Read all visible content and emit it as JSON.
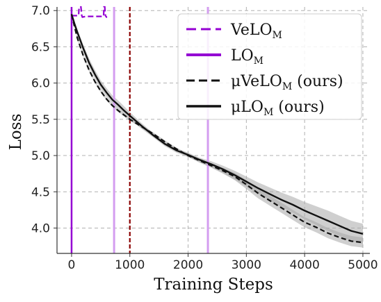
{
  "chart_data": {
    "type": "line",
    "xlabel": "Training Steps",
    "ylabel": "Loss",
    "xlim": [
      -250,
      5120
    ],
    "ylim": [
      3.65,
      7.05
    ],
    "xticks": [
      0,
      1000,
      2000,
      3000,
      4000,
      5000
    ],
    "xtick_labels": [
      "0",
      "1000",
      "2000",
      "3000",
      "4000",
      "5000"
    ],
    "yticks": [
      4.0,
      4.5,
      5.0,
      5.5,
      6.0,
      6.5,
      7.0
    ],
    "ytick_labels": [
      "4.0",
      "4.5",
      "5.0",
      "5.5",
      "6.0",
      "6.5",
      "7.0"
    ],
    "grid": true,
    "grid_style": "dashed",
    "legend_position": "top-right",
    "colors": {
      "velo": "#9400d3",
      "lo": "#9400d3",
      "lo_light": "#d49df0",
      "mu_velo": "#111111",
      "mu_lo": "#111111",
      "band": "#a8a8a8",
      "marker_1000": "#8b0000",
      "grid": "#b0b0b0"
    },
    "series": [
      {
        "name": "VeLO",
        "sub": "M",
        "legend_label": "VeLOM",
        "style": "dashed",
        "x": [
          0,
          120,
          130,
          160,
          175,
          185,
          250,
          400,
          550,
          555,
          570,
          580,
          600,
          610
        ],
        "y": [
          6.93,
          6.93,
          7.05,
          7.05,
          6.93,
          6.91,
          6.92,
          6.92,
          6.92,
          7.05,
          7.05,
          6.93,
          6.91,
          6.91
        ]
      },
      {
        "name": "LO",
        "sub": "M",
        "legend_label": "LOM",
        "style": "vline",
        "divergence_x": [
          0,
          730,
          2340
        ]
      },
      {
        "name": "μVeLO",
        "sub": "M",
        "suffix": " (ours)",
        "legend_label": "μVeLOM (ours)",
        "style": "dashed",
        "x": [
          0,
          50,
          100,
          200,
          300,
          400,
          500,
          600,
          700,
          800,
          900,
          1000,
          1200,
          1400,
          1600,
          1800,
          2000,
          2200,
          2400,
          2600,
          2800,
          3000,
          3200,
          3400,
          3600,
          3800,
          4000,
          4200,
          4400,
          4600,
          4800,
          5000
        ],
        "y": [
          6.95,
          6.78,
          6.62,
          6.38,
          6.18,
          6.02,
          5.89,
          5.78,
          5.69,
          5.62,
          5.56,
          5.5,
          5.4,
          5.3,
          5.19,
          5.09,
          5.0,
          4.93,
          4.86,
          4.79,
          4.71,
          4.6,
          4.48,
          4.38,
          4.28,
          4.18,
          4.08,
          4.01,
          3.93,
          3.87,
          3.82,
          3.8
        ],
        "band_low": [
          6.93,
          6.76,
          6.6,
          6.36,
          6.16,
          6.0,
          5.87,
          5.76,
          5.67,
          5.6,
          5.54,
          5.48,
          5.38,
          5.28,
          5.17,
          5.07,
          4.98,
          4.9,
          4.83,
          4.75,
          4.66,
          4.54,
          4.41,
          4.31,
          4.21,
          4.11,
          4.01,
          3.94,
          3.86,
          3.8,
          3.75,
          3.73
        ],
        "band_high": [
          6.97,
          6.8,
          6.64,
          6.4,
          6.2,
          6.04,
          5.91,
          5.8,
          5.71,
          5.64,
          5.58,
          5.52,
          5.42,
          5.32,
          5.21,
          5.11,
          5.02,
          4.96,
          4.89,
          4.83,
          4.76,
          4.66,
          4.55,
          4.45,
          4.35,
          4.25,
          4.15,
          4.08,
          4.0,
          3.94,
          3.89,
          3.87
        ]
      },
      {
        "name": "μLO",
        "sub": "M",
        "suffix": " (ours)",
        "legend_label": "μLOM (ours)",
        "style": "solid",
        "x": [
          0,
          50,
          100,
          200,
          300,
          400,
          500,
          600,
          700,
          800,
          900,
          1000,
          1200,
          1400,
          1600,
          1800,
          2000,
          2200,
          2400,
          2600,
          2800,
          3000,
          3200,
          3400,
          3600,
          3800,
          4000,
          4200,
          4400,
          4600,
          4800,
          5000
        ],
        "y": [
          6.95,
          6.82,
          6.7,
          6.48,
          6.28,
          6.12,
          5.98,
          5.87,
          5.77,
          5.7,
          5.62,
          5.55,
          5.41,
          5.28,
          5.16,
          5.07,
          5.01,
          4.94,
          4.88,
          4.81,
          4.73,
          4.64,
          4.55,
          4.47,
          4.39,
          4.32,
          4.24,
          4.17,
          4.1,
          4.03,
          3.96,
          3.92
        ],
        "band_low": [
          6.93,
          6.79,
          6.66,
          6.43,
          6.22,
          6.06,
          5.92,
          5.81,
          5.71,
          5.64,
          5.57,
          5.5,
          5.37,
          5.25,
          5.13,
          5.04,
          4.98,
          4.91,
          4.84,
          4.76,
          4.67,
          4.57,
          4.47,
          4.38,
          4.29,
          4.21,
          4.12,
          4.04,
          3.96,
          3.89,
          3.82,
          3.78
        ],
        "band_high": [
          6.97,
          6.85,
          6.74,
          6.53,
          6.34,
          6.18,
          6.04,
          5.93,
          5.83,
          5.76,
          5.68,
          5.6,
          5.45,
          5.31,
          5.19,
          5.1,
          5.04,
          4.97,
          4.92,
          4.86,
          4.79,
          4.71,
          4.63,
          4.56,
          4.49,
          4.43,
          4.36,
          4.3,
          4.24,
          4.17,
          4.1,
          4.06
        ]
      }
    ],
    "vertical_markers": [
      {
        "x": 1000,
        "style": "dashed",
        "color_key": "marker_1000"
      }
    ]
  }
}
